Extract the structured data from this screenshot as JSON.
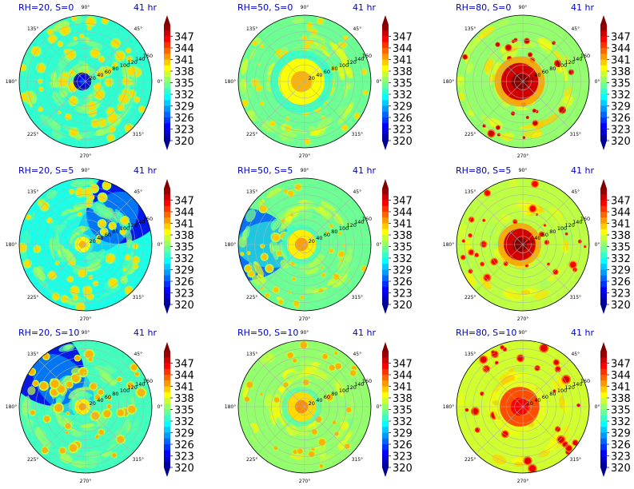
{
  "chart_data": {
    "type": "polar-contour",
    "colormap": [
      "#00008f",
      "#0000ff",
      "#0080ff",
      "#00ffff",
      "#80ff80",
      "#ffff00",
      "#ff8000",
      "#ff0000",
      "#800000"
    ],
    "colorbar": {
      "min": 320,
      "max": 350,
      "ticks": [
        "347",
        "344",
        "341",
        "338",
        "335",
        "332",
        "329",
        "326",
        "323",
        "320"
      ]
    },
    "angle_labels": [
      "90°",
      "45°",
      "0°",
      "315°",
      "270°",
      "225°",
      "180°",
      "135°"
    ],
    "radial_labels": [
      "20",
      "40",
      "60",
      "80",
      "100",
      "120",
      "140",
      "160"
    ],
    "time_label": "41 hr",
    "panels": [
      {
        "title": "RH=20, S=0",
        "time": "41 hr",
        "base_level": 0.42,
        "core_level": 0.1,
        "core_size": 0.1,
        "spot_level": 0.58,
        "spot_density": 70,
        "spot_size": 0.045,
        "ring_level": 0.5,
        "tilt_side": "none",
        "tilt_level": 0
      },
      {
        "title": "RH=50, S=0",
        "time": "41 hr",
        "base_level": 0.48,
        "core_level": 0.62,
        "core_size": 0.35,
        "spot_level": 0.58,
        "spot_density": 60,
        "spot_size": 0.035,
        "ring_level": 0.55,
        "tilt_side": "none",
        "tilt_level": 0
      },
      {
        "title": "RH=80, S=0",
        "time": "41 hr",
        "base_level": 0.52,
        "core_level": 0.92,
        "core_size": 0.28,
        "spot_level": 0.85,
        "spot_density": 25,
        "spot_size": 0.03,
        "ring_level": 0.6,
        "tilt_side": "none",
        "tilt_level": 0
      },
      {
        "title": "RH=20, S=5",
        "time": "41 hr",
        "base_level": 0.4,
        "core_level": 0.62,
        "core_size": 0.12,
        "spot_level": 0.58,
        "spot_density": 50,
        "spot_size": 0.04,
        "ring_level": 0.5,
        "tilt_side": "NE",
        "tilt_level": 0.1
      },
      {
        "title": "RH=50, S=5",
        "time": "41 hr",
        "base_level": 0.48,
        "core_level": 0.64,
        "core_size": 0.22,
        "spot_level": 0.6,
        "spot_density": 40,
        "spot_size": 0.035,
        "ring_level": 0.55,
        "tilt_side": "W",
        "tilt_level": 0.22
      },
      {
        "title": "RH=80, S=5",
        "time": "41 hr",
        "base_level": 0.56,
        "core_level": 0.92,
        "core_size": 0.24,
        "spot_level": 0.8,
        "spot_density": 30,
        "spot_size": 0.03,
        "ring_level": 0.6,
        "tilt_side": "none",
        "tilt_level": 0
      },
      {
        "title": "RH=20, S=10",
        "time": "41 hr",
        "base_level": 0.44,
        "core_level": 0.64,
        "core_size": 0.12,
        "spot_level": 0.62,
        "spot_density": 45,
        "spot_size": 0.04,
        "ring_level": 0.5,
        "tilt_side": "NW",
        "tilt_level": 0.1
      },
      {
        "title": "RH=50, S=10",
        "time": "41 hr",
        "base_level": 0.52,
        "core_level": 0.66,
        "core_size": 0.22,
        "spot_level": 0.62,
        "spot_density": 35,
        "spot_size": 0.035,
        "ring_level": 0.56,
        "tilt_side": "none",
        "tilt_level": 0
      },
      {
        "title": "RH=80, S=10",
        "time": "41 hr",
        "base_level": 0.58,
        "core_level": 0.8,
        "core_size": 0.3,
        "spot_level": 0.82,
        "spot_density": 40,
        "spot_size": 0.035,
        "ring_level": 0.62,
        "tilt_side": "none",
        "tilt_level": 0
      }
    ]
  }
}
